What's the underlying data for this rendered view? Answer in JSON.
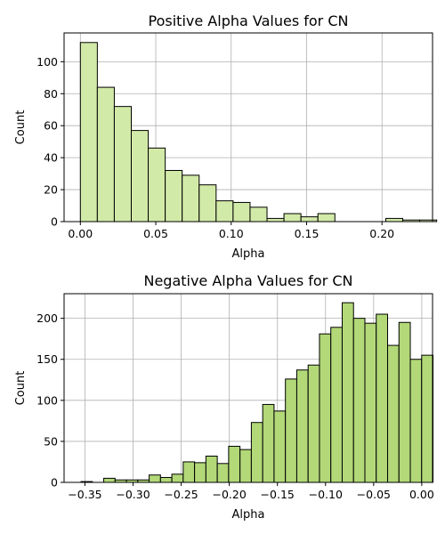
{
  "chart_data": [
    {
      "type": "bar",
      "title": "Positive Alpha Values for CN",
      "xlabel": "Alpha",
      "ylabel": "Count",
      "xlim": [
        -0.0108,
        0.2335
      ],
      "ylim": [
        0,
        118
      ],
      "xticks": [
        0.0,
        0.05,
        0.1,
        0.15,
        0.2
      ],
      "xtick_labels": [
        "0.00",
        "0.05",
        "0.10",
        "0.15",
        "0.20"
      ],
      "yticks": [
        0,
        20,
        40,
        60,
        80,
        100
      ],
      "ytick_labels": [
        "0",
        "20",
        "40",
        "60",
        "80",
        "100"
      ],
      "bin_start": 0.0,
      "bin_width": 0.01125,
      "values": [
        112,
        84,
        72,
        57,
        46,
        32,
        29,
        23,
        13,
        12,
        9,
        2,
        5,
        3,
        5,
        0,
        0,
        0,
        2,
        1,
        1
      ],
      "bar_color": "#d2eaa8",
      "edge_color": "#000000",
      "grid": true
    },
    {
      "type": "bar",
      "title": "Negative Alpha Values for CN",
      "xlabel": "Alpha",
      "ylabel": "Count",
      "xlim": [
        -0.3717,
        0.0112
      ],
      "ylim": [
        0,
        230
      ],
      "xticks": [
        -0.35,
        -0.3,
        -0.25,
        -0.2,
        -0.15,
        -0.1,
        -0.05,
        0.0
      ],
      "xtick_labels": [
        "−0.35",
        "−0.30",
        "−0.25",
        "−0.20",
        "−0.15",
        "−0.10",
        "−0.05",
        "0.00"
      ],
      "yticks": [
        0,
        50,
        100,
        150,
        200
      ],
      "ytick_labels": [
        "0",
        "50",
        "100",
        "150",
        "200"
      ],
      "bin_start": -0.3541,
      "bin_width": 0.0118,
      "values": [
        1,
        0,
        5,
        3,
        3,
        3,
        9,
        6,
        10,
        25,
        24,
        32,
        23,
        44,
        40,
        73,
        95,
        87,
        126,
        137,
        143,
        181,
        189,
        219,
        200,
        194,
        205,
        167,
        195,
        150,
        155
      ],
      "bar_color": "#b2d878",
      "edge_color": "#000000",
      "grid": true
    }
  ]
}
